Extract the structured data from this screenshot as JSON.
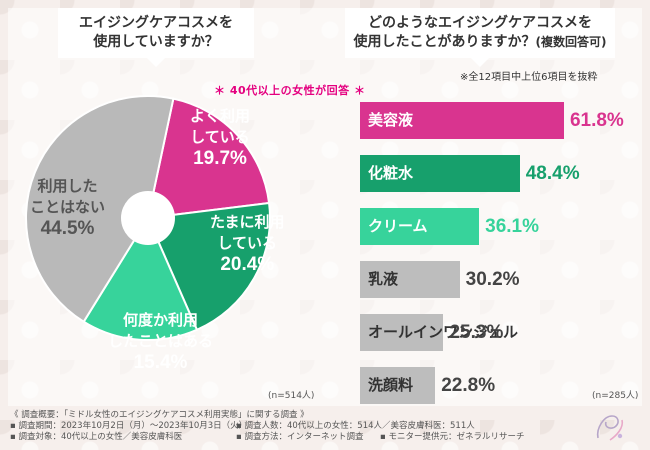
{
  "questions": {
    "q1": {
      "line1": "エイジングケアコスメを",
      "line2": "使用していますか？"
    },
    "q2": {
      "line1": "どのようなエイジングケアコスメを",
      "line2": "使用したことがありますか？",
      "sub": "(複数回答可)"
    }
  },
  "note": "※全12項目中上位6項目を抜粋",
  "target": "＊ 40代以上の女性が回答 ＊",
  "colors": {
    "magenta": "#d9348f",
    "green_dark": "#17a06c",
    "green_light": "#37d39b",
    "gray": "#b9b9b9",
    "bar_gray": "#bdbdbd"
  },
  "chart_data": [
    {
      "type": "pie",
      "title": "エイジングケアコスメを使用していますか？",
      "slices": [
        {
          "label_line1": "よく利用",
          "label_line2": "している",
          "label_pct": "19.7%",
          "value": 19.7,
          "color": "#d9348f",
          "text_color": "#ffffff"
        },
        {
          "label_line1": "たまに利用",
          "label_line2": "している",
          "label_pct": "20.4%",
          "value": 20.4,
          "color": "#17a06c",
          "text_color": "#ffffff"
        },
        {
          "label_line1": "何度か利用",
          "label_line2": "したことはある",
          "label_pct": "15.4%",
          "value": 15.4,
          "color": "#37d39b",
          "text_color": "#ffffff"
        },
        {
          "label_line1": "利用した",
          "label_line2": "ことはない",
          "label_pct": "44.5%",
          "value": 44.5,
          "color": "#b9b9b9",
          "text_color": "#555555"
        }
      ],
      "n": "(n=514人)"
    },
    {
      "type": "bar",
      "title": "どのようなエイジングケアコスメを使用したことがありますか？(複数回答可)",
      "categories": [
        "美容液",
        "化粧水",
        "クリーム",
        "乳液",
        "オールインワンジェル",
        "洗顔料"
      ],
      "values": [
        61.8,
        48.4,
        36.1,
        30.2,
        25.3,
        22.8
      ],
      "value_labels": [
        "61.8%",
        "48.4%",
        "36.1%",
        "30.2%",
        "25.3%",
        "22.8%"
      ],
      "colors": [
        "#d9348f",
        "#17a06c",
        "#37d39b",
        "#bdbdbd",
        "#bdbdbd",
        "#bdbdbd"
      ],
      "label_colors": [
        "#ffffff",
        "#ffffff",
        "#ffffff",
        "#333333",
        "#333333",
        "#333333"
      ],
      "value_colors": [
        "#d9348f",
        "#17a06c",
        "#37d39b",
        "#444444",
        "#444444",
        "#444444"
      ],
      "xlim": [
        0,
        100
      ],
      "n": "(n=285人)"
    }
  ],
  "footer": {
    "title": "《 調査概要：「ミドル女性のエイジングケアコスメ利用実態」に関する調査 》",
    "period": "▪ 調査期間：2023年10月2日（月）～2023年10月3日（火）",
    "respondents": "▪ 調査人数：40代以上の女性：514人／美容皮膚科医：511人",
    "target": "▪ 調査対象：40代以上の女性／美容皮膚科医",
    "method": "▪ 調査方法：インターネット調査",
    "provider": "▪ モニター提供元：ゼネラルリサーチ"
  }
}
